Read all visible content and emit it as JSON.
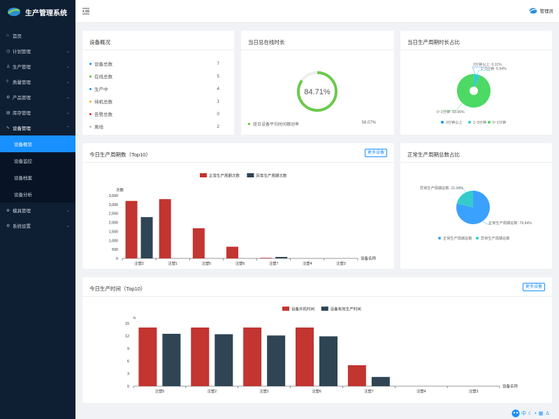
{
  "app": {
    "title": "生产管理系统"
  },
  "topbar": {
    "user": "管理员"
  },
  "sidebar": {
    "items": [
      {
        "label": "首页",
        "icon": "home-icon"
      },
      {
        "label": "计划管理",
        "icon": "clock-icon"
      },
      {
        "label": "生产管理",
        "icon": "person-icon"
      },
      {
        "label": "质量管理",
        "icon": "shield-icon"
      },
      {
        "label": "产品管理",
        "icon": "gear-icon"
      },
      {
        "label": "库存管理",
        "icon": "box-icon"
      },
      {
        "label": "设备管理",
        "icon": "wrench-icon"
      }
    ],
    "sub_items": [
      {
        "label": "设备概览"
      },
      {
        "label": "设备监控"
      },
      {
        "label": "设备档案"
      },
      {
        "label": "设备分析"
      }
    ],
    "bottom_items": [
      {
        "label": "模具管理",
        "icon": "mold-icon"
      },
      {
        "label": "系统设置",
        "icon": "settings-icon"
      }
    ]
  },
  "overview": {
    "title": "设备概况",
    "rows": [
      {
        "label": "设备总数",
        "value": "7",
        "color": "#1890ff"
      },
      {
        "label": "在线总数",
        "value": "5",
        "color": "#52c41a"
      },
      {
        "label": "生产中",
        "value": "4",
        "color": "#1890ff"
      },
      {
        "label": "待机总数",
        "value": "1",
        "color": "#faad14"
      },
      {
        "label": "告警总数",
        "value": "0",
        "color": "#f5222d"
      },
      {
        "label": "离线",
        "value": "2",
        "color": "#bfbfbf"
      }
    ]
  },
  "online": {
    "title": "当日总在线时长",
    "percent_label": "84.71%",
    "percent_value": 84.71,
    "footer_label": "班日设备平均时间稼动率",
    "footer_value": "56.07%"
  },
  "cycle_ratio": {
    "title": "当日生产周期时长占比",
    "label_a": "3分钟以上: 0.11%",
    "label_b": "1~3分钟: 5.94%",
    "label_c": "0~1分钟: 93.95%",
    "legend": [
      "3分钟以上",
      "1~3分钟",
      "0~1分钟"
    ]
  },
  "normal_ratio": {
    "title": "正常生产周期总数占比",
    "label_abnormal": "异常生产周期总数: 21.16%",
    "label_normal": "正常生产周期总数: 78.84%",
    "legend": [
      "正常生产周期总数",
      "异常生产周期总数"
    ]
  },
  "cycles_chart": {
    "title": "今日生产周期数（Top10）",
    "more": "更多设备",
    "unit": "次数",
    "xname": "设备名称"
  },
  "time_chart": {
    "title": "今日生产时间（Top10）",
    "more": "更多设备",
    "unit": "h",
    "xname": "设备名称"
  },
  "floatbar": {
    "text": "中"
  },
  "chart_data": [
    {
      "type": "bar",
      "title": "今日生产周期数（Top10）",
      "ylabel": "次数",
      "xlabel": "设备名称",
      "categories": [
        "注塑2",
        "注塑1",
        "注塑5",
        "注塑6",
        "注塑7",
        "注塑4",
        "注塑3"
      ],
      "series": [
        {
          "name": "正常生产周期次数",
          "color": "#c23531",
          "values": [
            3200,
            3300,
            1680,
            650,
            30,
            0,
            0
          ]
        },
        {
          "name": "异常生产周期次数",
          "color": "#2f4554",
          "values": [
            2300,
            0,
            0,
            0,
            80,
            0,
            0
          ]
        }
      ],
      "ylim": [
        0,
        3500
      ],
      "yticks": [
        "0",
        "500",
        "1,000",
        "1,500",
        "2,000",
        "2,500",
        "3,000",
        "3,500"
      ]
    },
    {
      "type": "bar",
      "title": "今日生产时间（Top10）",
      "ylabel": "h",
      "xlabel": "设备名称",
      "categories": [
        "注塑5",
        "注塑2",
        "注塑1",
        "注塑6",
        "注塑7",
        "注塑4",
        "注塑3"
      ],
      "series": [
        {
          "name": "设备开机时间",
          "color": "#c23531",
          "values": [
            14,
            14,
            14,
            14,
            5,
            0,
            0
          ]
        },
        {
          "name": "设备有效生产时间",
          "color": "#2f4554",
          "values": [
            12.5,
            12.4,
            12.1,
            11.9,
            2.2,
            0,
            0
          ]
        }
      ],
      "ylim": [
        0,
        15
      ],
      "yticks": [
        "0",
        "3",
        "6",
        "9",
        "12",
        "15"
      ]
    },
    {
      "type": "pie",
      "title": "当日生产周期时长占比",
      "categories": [
        "3分钟以上",
        "1~3分钟",
        "0~1分钟"
      ],
      "values": [
        0.11,
        5.94,
        93.95
      ],
      "colors": [
        "#1890ff",
        "#36cfc9",
        "#4cd964"
      ]
    },
    {
      "type": "pie",
      "title": "正常生产周期总数占比",
      "categories": [
        "正常生产周期总数",
        "异常生产周期总数"
      ],
      "values": [
        78.84,
        21.16
      ],
      "colors": [
        "#3ba1ff",
        "#36cbcb"
      ]
    }
  ]
}
